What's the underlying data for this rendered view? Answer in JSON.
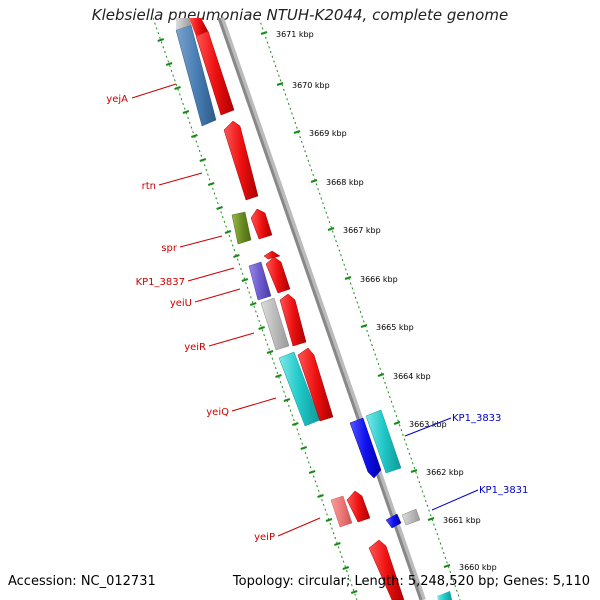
{
  "title": "Klebsiella pneumoniae NTUH-K2044, complete genome",
  "footer": {
    "accession": "Accession: NC_012731",
    "topology": "Topology: circular; Length: 5,248,520 bp; Genes: 5,110"
  },
  "colors": {
    "forward_gene": "#ee1111",
    "label_left": "#cc0000",
    "label_right": "#0000cc",
    "tick": "#1a8a1a",
    "backbone": "#888888"
  },
  "ticks": [
    {
      "label": "3671 kbp"
    },
    {
      "label": "3670 kbp"
    },
    {
      "label": "3669 kbp"
    },
    {
      "label": "3668 kbp"
    },
    {
      "label": "3667 kbp"
    },
    {
      "label": "3666 kbp"
    },
    {
      "label": "3665 kbp"
    },
    {
      "label": "3664 kbp"
    },
    {
      "label": "3663 kbp"
    },
    {
      "label": "3662 kbp"
    },
    {
      "label": "3661 kbp"
    },
    {
      "label": "3660 kbp"
    }
  ],
  "left_labels": [
    {
      "text": "yejA"
    },
    {
      "text": "rtn"
    },
    {
      "text": "spr"
    },
    {
      "text": "KP1_3837"
    },
    {
      "text": "yeiU"
    },
    {
      "text": "yeiR"
    },
    {
      "text": "yeiQ"
    },
    {
      "text": "yeiP"
    }
  ],
  "right_labels": [
    {
      "text": "KP1_3833"
    },
    {
      "text": "KP1_3831"
    }
  ]
}
